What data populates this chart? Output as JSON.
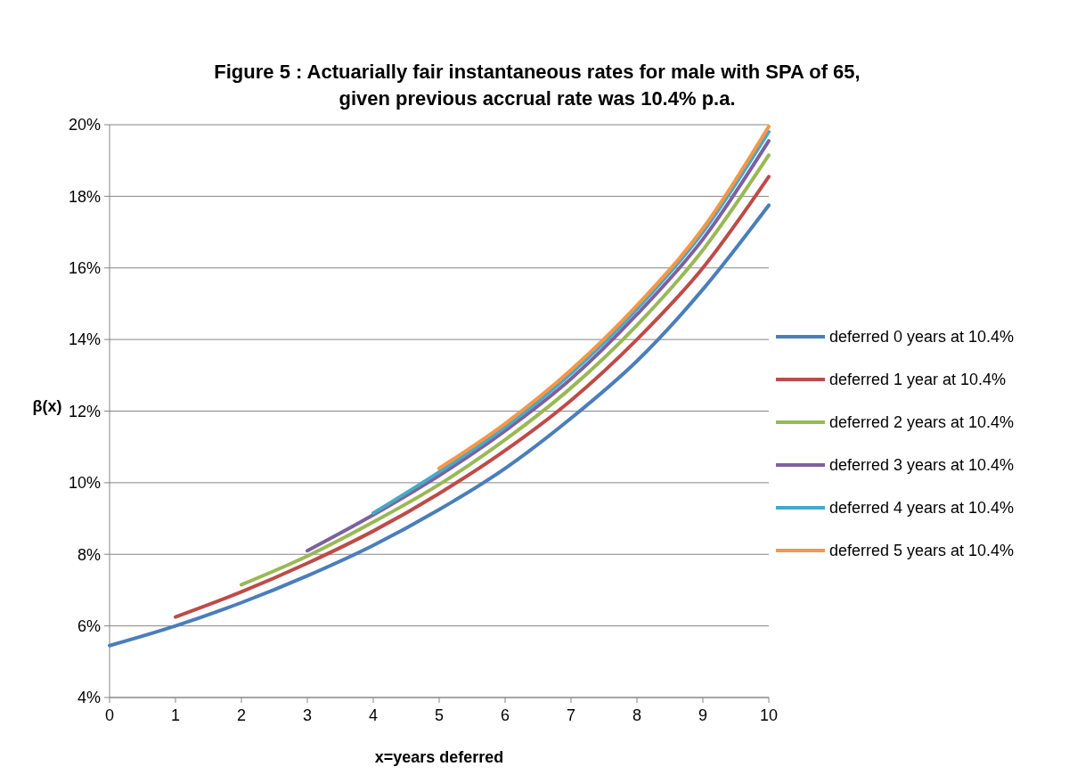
{
  "chart_data": {
    "type": "line",
    "title": "Figure 5 : Actuarially fair instantaneous rates  for male with  SPA of 65,\ngiven previous accrual rate was 10.4% p.a.",
    "xlabel": "x=years deferred",
    "ylabel": "β(x)",
    "xlim": [
      0,
      10
    ],
    "xticks": [
      0,
      1,
      2,
      3,
      4,
      5,
      6,
      7,
      8,
      9,
      10
    ],
    "ylim": [
      4,
      20
    ],
    "yticks": [
      {
        "value": 4,
        "label": "4%"
      },
      {
        "value": 6,
        "label": "6%"
      },
      {
        "value": 8,
        "label": "8%"
      },
      {
        "value": 10,
        "label": "10%"
      },
      {
        "value": 12,
        "label": "12%"
      },
      {
        "value": 14,
        "label": "14%"
      },
      {
        "value": 16,
        "label": "16%"
      },
      {
        "value": 18,
        "label": "18%"
      },
      {
        "value": 20,
        "label": "20%"
      }
    ],
    "grid": "y",
    "legend": "right",
    "marker": "none",
    "line_style": "solid",
    "series": [
      {
        "name": "deferred 0 years at 10.4%",
        "color": "#4a7ebb",
        "x": [
          0,
          1,
          2,
          3,
          4,
          5,
          6,
          7,
          8,
          9,
          10
        ],
        "values": [
          5.45,
          6.0,
          6.65,
          7.4,
          8.25,
          9.25,
          10.4,
          11.8,
          13.4,
          15.4,
          17.75
        ]
      },
      {
        "name": "deferred 1 year at 10.4%",
        "color": "#be4b48",
        "x": [
          1,
          2,
          3,
          4,
          5,
          6,
          7,
          8,
          9,
          10
        ],
        "values": [
          6.25,
          6.95,
          7.75,
          8.65,
          9.7,
          10.9,
          12.3,
          14.0,
          16.0,
          18.55
        ]
      },
      {
        "name": "deferred 2 years at 10.4%",
        "color": "#98b954",
        "x": [
          2,
          3,
          4,
          5,
          6,
          7,
          8,
          9,
          10
        ],
        "values": [
          7.15,
          7.95,
          8.9,
          9.95,
          11.2,
          12.65,
          14.4,
          16.5,
          19.15
        ]
      },
      {
        "name": "deferred 3 years at 10.4%",
        "color": "#7d60a0",
        "x": [
          3,
          4,
          5,
          6,
          7,
          8,
          9,
          10
        ],
        "values": [
          8.1,
          9.1,
          10.2,
          11.45,
          12.9,
          14.7,
          16.8,
          19.55
        ]
      },
      {
        "name": "deferred 4 years at 10.4%",
        "color": "#46aac5",
        "x": [
          4,
          5,
          6,
          7,
          8,
          9,
          10
        ],
        "values": [
          9.15,
          10.3,
          11.55,
          13.05,
          14.85,
          17.0,
          19.8
        ]
      },
      {
        "name": "deferred 5 years at 10.4%",
        "color": "#f79646",
        "x": [
          5,
          6,
          7,
          8,
          9,
          10
        ],
        "values": [
          10.4,
          11.65,
          13.15,
          14.95,
          17.1,
          19.95
        ]
      }
    ]
  }
}
